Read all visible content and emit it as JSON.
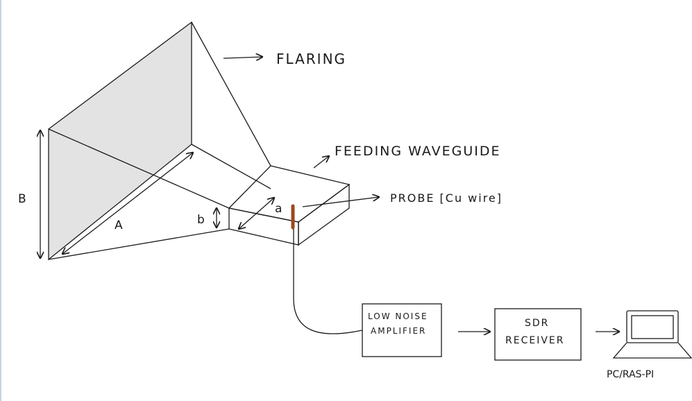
{
  "labels": {
    "flaring": "FLARING",
    "feeding_waveguide": "FEEDING WAVEGUIDE",
    "probe": "PROBE [Cu wire]",
    "dim_A": "A",
    "dim_B": "B",
    "dim_a": "a",
    "dim_b": "b",
    "lna_line1": "LOW NOISE",
    "lna_line2": "AMPLIFIER",
    "sdr_line1": "SDR",
    "sdr_line2": "RECEIVER",
    "pc": "PC/RAS-PI"
  },
  "colors": {
    "ink": "#1a1a1a",
    "shade": "#e3e3e3",
    "probe": "#a0481c",
    "left_edge": "#c9d4e3"
  }
}
